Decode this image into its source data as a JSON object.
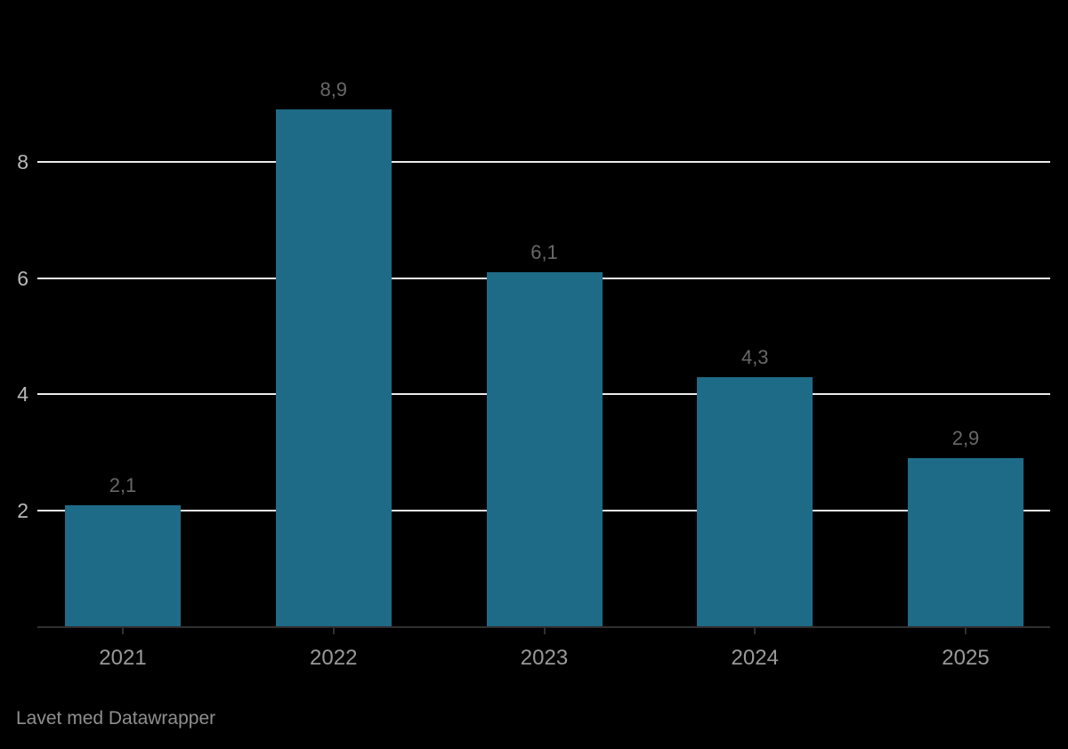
{
  "chart_data": {
    "type": "bar",
    "categories": [
      "2021",
      "2022",
      "2023",
      "2024",
      "2025"
    ],
    "values": [
      2.1,
      8.9,
      6.1,
      4.3,
      2.9
    ],
    "value_labels": [
      "2,1",
      "8,9",
      "6,1",
      "4,3",
      "2,9"
    ],
    "title": "",
    "xlabel": "",
    "ylabel": "",
    "y_ticks": [
      8,
      6,
      4,
      2
    ],
    "ylim": [
      0,
      9.4
    ],
    "grid": "horizontal",
    "legend": "none",
    "decimal_separator": ","
  },
  "colors": {
    "background": "#000000",
    "bar": "#1e6b87",
    "gridline": "#ebebeb",
    "axis_line": "#303030",
    "tick_mark": "#303030",
    "y_tick_label": "#b8b8b8",
    "x_tick_label": "#999999",
    "value_label": "#686868",
    "attribution": "#8f8f8f"
  },
  "footer": {
    "attribution": "Lavet med Datawrapper"
  }
}
